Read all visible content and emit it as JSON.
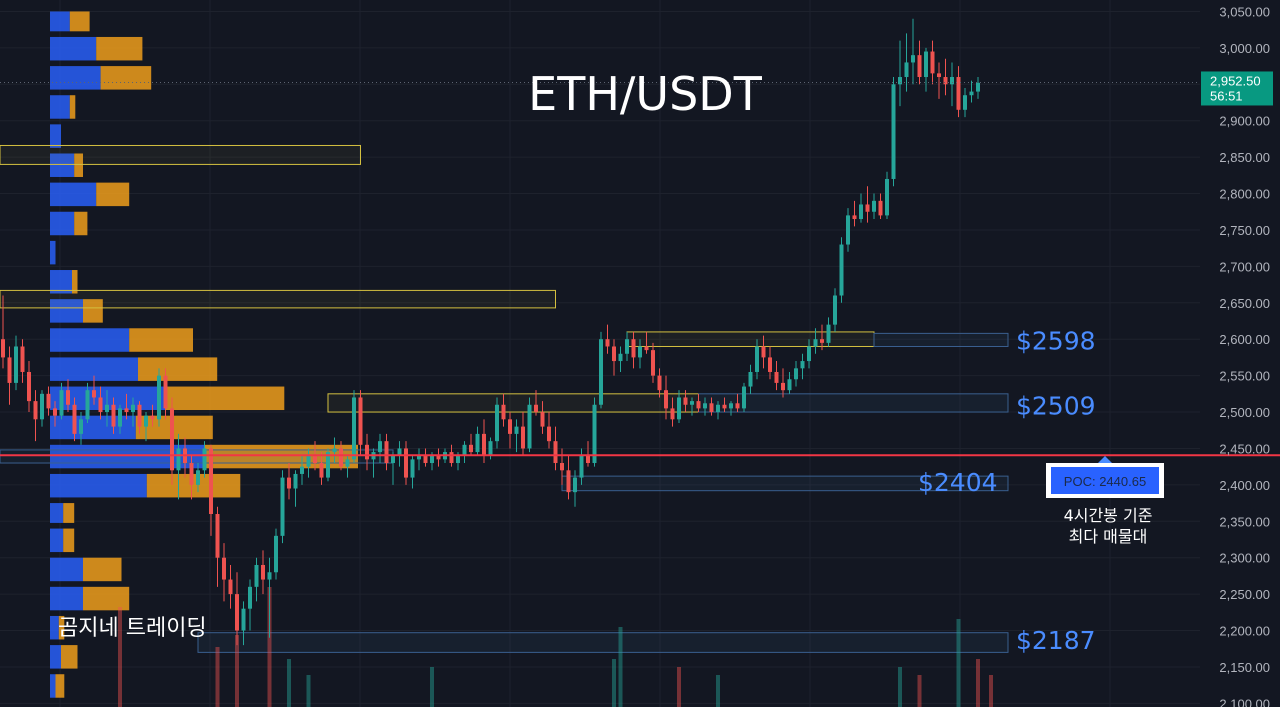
{
  "chart_data": {
    "type": "candlestick",
    "title": "ETH/USDT",
    "ylim": [
      2095,
      3063
    ],
    "y_ticks": [
      "3,050.00",
      "3,000.00",
      "2,950.00",
      "2,900.00",
      "2,850.00",
      "2,800.00",
      "2,750.00",
      "2,700.00",
      "2,650.00",
      "2,600.00",
      "2,550.00",
      "2,500.00",
      "2,450.00",
      "2,400.00",
      "2,350.00",
      "2,300.00",
      "2,250.00",
      "2,200.00",
      "2,150.00",
      "2,100.00"
    ],
    "y_tick_values": [
      3050,
      3000,
      2950,
      2900,
      2850,
      2800,
      2750,
      2700,
      2650,
      2600,
      2550,
      2500,
      2450,
      2400,
      2350,
      2300,
      2250,
      2200,
      2150,
      2100
    ],
    "current_price": {
      "value": 2952.5,
      "label": "2,952.50",
      "timer": "56:51",
      "color": "#089981"
    },
    "poc": {
      "value": 2440.65,
      "label": "POC: 2440.65",
      "color": "#f23645"
    },
    "note_line1": "4시간봉 기준",
    "note_line2": "최다 매물대",
    "brand": "곰지네 트레이딩",
    "levels": [
      {
        "label": "$2598",
        "price": 2598
      },
      {
        "label": "$2509",
        "price": 2509
      },
      {
        "label": "$2404",
        "price": 2404
      },
      {
        "label": "$2187",
        "price": 2187
      }
    ],
    "colors": {
      "up": "#26a69a",
      "down": "#ef5350",
      "profile_blue": "#2962ff",
      "profile_orange": "#f7a21b",
      "zone_yellow": "#d4c040",
      "zone_blue": "#3a5f8f"
    },
    "candles": [
      [
        2600,
        2660,
        2560,
        2575
      ],
      [
        2575,
        2590,
        2510,
        2540
      ],
      [
        2540,
        2605,
        2530,
        2590
      ],
      [
        2590,
        2600,
        2540,
        2555
      ],
      [
        2555,
        2570,
        2500,
        2515
      ],
      [
        2515,
        2530,
        2460,
        2490
      ],
      [
        2490,
        2530,
        2480,
        2525
      ],
      [
        2525,
        2535,
        2495,
        2505
      ],
      [
        2505,
        2515,
        2480,
        2495
      ],
      [
        2495,
        2540,
        2490,
        2530
      ],
      [
        2530,
        2545,
        2500,
        2510
      ],
      [
        2510,
        2520,
        2460,
        2470
      ],
      [
        2470,
        2500,
        2455,
        2490
      ],
      [
        2490,
        2540,
        2485,
        2530
      ],
      [
        2530,
        2550,
        2510,
        2520
      ],
      [
        2520,
        2535,
        2490,
        2500
      ],
      [
        2500,
        2530,
        2480,
        2510
      ],
      [
        2510,
        2520,
        2470,
        2480
      ],
      [
        2480,
        2510,
        2470,
        2505
      ],
      [
        2505,
        2525,
        2490,
        2500
      ],
      [
        2500,
        2520,
        2480,
        2510
      ],
      [
        2510,
        2515,
        2470,
        2480
      ],
      [
        2480,
        2500,
        2460,
        2495
      ],
      [
        2495,
        2510,
        2480,
        2490
      ],
      [
        2490,
        2560,
        2480,
        2550
      ],
      [
        2550,
        2560,
        2490,
        2505
      ],
      [
        2505,
        2520,
        2400,
        2420
      ],
      [
        2420,
        2470,
        2380,
        2450
      ],
      [
        2450,
        2465,
        2410,
        2430
      ],
      [
        2430,
        2440,
        2380,
        2400
      ],
      [
        2400,
        2430,
        2390,
        2420
      ],
      [
        2420,
        2460,
        2410,
        2450
      ],
      [
        2450,
        2455,
        2330,
        2360
      ],
      [
        2360,
        2370,
        2260,
        2300
      ],
      [
        2300,
        2320,
        2240,
        2270
      ],
      [
        2270,
        2290,
        2230,
        2250
      ],
      [
        2250,
        2280,
        2180,
        2200
      ],
      [
        2200,
        2240,
        2180,
        2230
      ],
      [
        2230,
        2270,
        2200,
        2260
      ],
      [
        2260,
        2300,
        2240,
        2290
      ],
      [
        2290,
        2310,
        2250,
        2270
      ],
      [
        2270,
        2300,
        2190,
        2280
      ],
      [
        2280,
        2340,
        2270,
        2330
      ],
      [
        2330,
        2420,
        2320,
        2410
      ],
      [
        2410,
        2430,
        2380,
        2395
      ],
      [
        2395,
        2420,
        2370,
        2415
      ],
      [
        2415,
        2440,
        2400,
        2425
      ],
      [
        2425,
        2450,
        2410,
        2440
      ],
      [
        2440,
        2460,
        2420,
        2430
      ],
      [
        2430,
        2445,
        2400,
        2410
      ],
      [
        2410,
        2450,
        2405,
        2445
      ],
      [
        2445,
        2465,
        2430,
        2450
      ],
      [
        2450,
        2460,
        2420,
        2425
      ],
      [
        2425,
        2440,
        2410,
        2435
      ],
      [
        2435,
        2530,
        2430,
        2520
      ],
      [
        2520,
        2530,
        2440,
        2455
      ],
      [
        2455,
        2470,
        2420,
        2435
      ],
      [
        2435,
        2450,
        2410,
        2445
      ],
      [
        2445,
        2470,
        2430,
        2460
      ],
      [
        2460,
        2470,
        2420,
        2430
      ],
      [
        2430,
        2445,
        2400,
        2440
      ],
      [
        2440,
        2460,
        2425,
        2450
      ],
      [
        2450,
        2460,
        2400,
        2410
      ],
      [
        2410,
        2440,
        2395,
        2435
      ],
      [
        2435,
        2450,
        2420,
        2440
      ],
      [
        2440,
        2450,
        2425,
        2430
      ],
      [
        2430,
        2445,
        2420,
        2440
      ],
      [
        2440,
        2450,
        2425,
        2435
      ],
      [
        2435,
        2450,
        2430,
        2445
      ],
      [
        2445,
        2455,
        2425,
        2430
      ],
      [
        2430,
        2445,
        2420,
        2440
      ],
      [
        2440,
        2460,
        2430,
        2455
      ],
      [
        2455,
        2470,
        2440,
        2445
      ],
      [
        2445,
        2480,
        2440,
        2470
      ],
      [
        2470,
        2490,
        2430,
        2440
      ],
      [
        2440,
        2465,
        2435,
        2460
      ],
      [
        2460,
        2520,
        2450,
        2510
      ],
      [
        2510,
        2525,
        2480,
        2490
      ],
      [
        2490,
        2500,
        2450,
        2470
      ],
      [
        2470,
        2490,
        2445,
        2480
      ],
      [
        2480,
        2500,
        2440,
        2450
      ],
      [
        2450,
        2520,
        2445,
        2510
      ],
      [
        2510,
        2530,
        2495,
        2500
      ],
      [
        2500,
        2515,
        2470,
        2480
      ],
      [
        2480,
        2500,
        2450,
        2460
      ],
      [
        2460,
        2480,
        2420,
        2430
      ],
      [
        2430,
        2450,
        2400,
        2420
      ],
      [
        2420,
        2440,
        2380,
        2390
      ],
      [
        2390,
        2420,
        2370,
        2410
      ],
      [
        2410,
        2450,
        2400,
        2440
      ],
      [
        2440,
        2460,
        2425,
        2430
      ],
      [
        2430,
        2520,
        2425,
        2510
      ],
      [
        2510,
        2610,
        2505,
        2600
      ],
      [
        2600,
        2620,
        2580,
        2590
      ],
      [
        2590,
        2600,
        2550,
        2570
      ],
      [
        2570,
        2590,
        2555,
        2580
      ],
      [
        2580,
        2610,
        2570,
        2600
      ],
      [
        2600,
        2610,
        2560,
        2575
      ],
      [
        2575,
        2600,
        2560,
        2590
      ],
      [
        2590,
        2610,
        2580,
        2585
      ],
      [
        2585,
        2595,
        2540,
        2550
      ],
      [
        2550,
        2560,
        2520,
        2530
      ],
      [
        2530,
        2550,
        2490,
        2505
      ],
      [
        2505,
        2520,
        2480,
        2490
      ],
      [
        2490,
        2530,
        2485,
        2520
      ],
      [
        2520,
        2530,
        2500,
        2510
      ],
      [
        2510,
        2520,
        2495,
        2515
      ],
      [
        2515,
        2525,
        2500,
        2505
      ],
      [
        2505,
        2520,
        2495,
        2512
      ],
      [
        2512,
        2520,
        2495,
        2500
      ],
      [
        2500,
        2515,
        2490,
        2510
      ],
      [
        2510,
        2520,
        2500,
        2505
      ],
      [
        2505,
        2515,
        2495,
        2512
      ],
      [
        2512,
        2525,
        2500,
        2505
      ],
      [
        2505,
        2540,
        2500,
        2535
      ],
      [
        2535,
        2565,
        2525,
        2555
      ],
      [
        2555,
        2600,
        2545,
        2590
      ],
      [
        2590,
        2605,
        2560,
        2575
      ],
      [
        2575,
        2590,
        2545,
        2555
      ],
      [
        2555,
        2570,
        2530,
        2540
      ],
      [
        2540,
        2560,
        2520,
        2530
      ],
      [
        2530,
        2555,
        2525,
        2545
      ],
      [
        2545,
        2570,
        2535,
        2560
      ],
      [
        2560,
        2580,
        2545,
        2570
      ],
      [
        2570,
        2600,
        2560,
        2590
      ],
      [
        2590,
        2615,
        2580,
        2600
      ],
      [
        2600,
        2620,
        2585,
        2595
      ],
      [
        2595,
        2630,
        2590,
        2620
      ],
      [
        2620,
        2670,
        2610,
        2660
      ],
      [
        2660,
        2740,
        2650,
        2730
      ],
      [
        2730,
        2780,
        2720,
        2770
      ],
      [
        2770,
        2790,
        2755,
        2765
      ],
      [
        2765,
        2800,
        2760,
        2785
      ],
      [
        2785,
        2810,
        2760,
        2775
      ],
      [
        2775,
        2800,
        2765,
        2790
      ],
      [
        2790,
        2800,
        2765,
        2770
      ],
      [
        2770,
        2830,
        2765,
        2820
      ],
      [
        2820,
        2960,
        2810,
        2950
      ],
      [
        2950,
        3010,
        2920,
        2960
      ],
      [
        2960,
        3020,
        2940,
        2980
      ],
      [
        2980,
        3040,
        2950,
        2990
      ],
      [
        2990,
        3010,
        2950,
        2960
      ],
      [
        2960,
        3000,
        2940,
        2995
      ],
      [
        2995,
        3010,
        2950,
        2965
      ],
      [
        2965,
        2980,
        2930,
        2960
      ],
      [
        2960,
        2985,
        2935,
        2950
      ],
      [
        2950,
        2980,
        2920,
        2960
      ],
      [
        2960,
        2975,
        2905,
        2915
      ],
      [
        2915,
        2945,
        2905,
        2935
      ],
      [
        2935,
        2955,
        2925,
        2940
      ],
      [
        2940,
        2960,
        2930,
        2952
      ]
    ],
    "volume_bars": [
      {
        "i": 18,
        "v": 0.25,
        "up": false
      },
      {
        "i": 33,
        "v": 0.15,
        "up": false
      },
      {
        "i": 36,
        "v": 0.18,
        "up": false
      },
      {
        "i": 41,
        "v": 0.3,
        "up": false
      },
      {
        "i": 44,
        "v": 0.12,
        "up": true
      },
      {
        "i": 47,
        "v": 0.08,
        "up": true
      },
      {
        "i": 66,
        "v": 0.1,
        "up": true
      },
      {
        "i": 94,
        "v": 0.12,
        "up": true
      },
      {
        "i": 95,
        "v": 0.2,
        "up": true
      },
      {
        "i": 104,
        "v": 0.1,
        "up": false
      },
      {
        "i": 110,
        "v": 0.08,
        "up": true
      },
      {
        "i": 138,
        "v": 0.1,
        "up": true
      },
      {
        "i": 141,
        "v": 0.08,
        "up": false
      },
      {
        "i": 147,
        "v": 0.22,
        "up": true
      },
      {
        "i": 150,
        "v": 0.12,
        "up": false
      },
      {
        "i": 152,
        "v": 0.08,
        "up": false
      }
    ],
    "volume_profile": [
      {
        "low": 3020,
        "high": 3050,
        "blue": 0.18,
        "orange": 0.18
      },
      {
        "low": 2980,
        "high": 3015,
        "blue": 0.42,
        "orange": 0.42
      },
      {
        "low": 2940,
        "high": 2975,
        "blue": 0.46,
        "orange": 0.46
      },
      {
        "low": 2900,
        "high": 2935,
        "blue": 0.18,
        "orange": 0.05
      },
      {
        "low": 2860,
        "high": 2895,
        "blue": 0.1,
        "orange": 0
      },
      {
        "low": 2820,
        "high": 2855,
        "blue": 0.22,
        "orange": 0.08
      },
      {
        "low": 2780,
        "high": 2815,
        "blue": 0.42,
        "orange": 0.3
      },
      {
        "low": 2740,
        "high": 2775,
        "blue": 0.22,
        "orange": 0.12
      },
      {
        "low": 2700,
        "high": 2735,
        "blue": 0.05,
        "orange": 0
      },
      {
        "low": 2660,
        "high": 2695,
        "blue": 0.2,
        "orange": 0.05
      },
      {
        "low": 2620,
        "high": 2655,
        "blue": 0.3,
        "orange": 0.18
      },
      {
        "low": 2580,
        "high": 2615,
        "blue": 0.72,
        "orange": 0.58
      },
      {
        "low": 2540,
        "high": 2575,
        "blue": 0.8,
        "orange": 0.72
      },
      {
        "low": 2500,
        "high": 2535,
        "blue": 1.05,
        "orange": 1.08
      },
      {
        "low": 2460,
        "high": 2495,
        "blue": 0.78,
        "orange": 0.7
      },
      {
        "low": 2420,
        "high": 2455,
        "blue": 1.4,
        "orange": 1.4
      },
      {
        "low": 2380,
        "high": 2415,
        "blue": 0.88,
        "orange": 0.85
      },
      {
        "low": 2345,
        "high": 2375,
        "blue": 0.12,
        "orange": 0.1
      },
      {
        "low": 2305,
        "high": 2340,
        "blue": 0.12,
        "orange": 0.1
      },
      {
        "low": 2265,
        "high": 2300,
        "blue": 0.3,
        "orange": 0.35
      },
      {
        "low": 2225,
        "high": 2260,
        "blue": 0.3,
        "orange": 0.42
      },
      {
        "low": 2185,
        "high": 2220,
        "blue": 0.08,
        "orange": 0.05
      },
      {
        "low": 2145,
        "high": 2180,
        "blue": 0.1,
        "orange": 0.15
      },
      {
        "low": 2105,
        "high": 2140,
        "blue": 0.05,
        "orange": 0.08
      }
    ],
    "zones": [
      {
        "low": 2840,
        "high": 2866,
        "kind": "yellow",
        "start": -10,
        "end": 55
      },
      {
        "low": 2643,
        "high": 2667,
        "kind": "yellow",
        "start": -10,
        "end": 85
      },
      {
        "low": 2590,
        "high": 2610,
        "kind": "yellow",
        "start": 96,
        "end": 134
      },
      {
        "low": 2590,
        "high": 2608,
        "kind": "blue",
        "start": 134,
        "end": 162
      },
      {
        "low": 2500,
        "high": 2525,
        "kind": "yellow",
        "start": 50,
        "end": 107
      },
      {
        "low": 2500,
        "high": 2525,
        "kind": "blue",
        "start": 107,
        "end": 162
      },
      {
        "low": 2430,
        "high": 2448,
        "kind": "blue",
        "start": -10,
        "end": 60
      },
      {
        "low": 2392,
        "high": 2412,
        "kind": "blue",
        "start": 86,
        "end": 162
      },
      {
        "low": 2170,
        "high": 2197,
        "kind": "blue",
        "start": 30,
        "end": 162
      }
    ]
  }
}
